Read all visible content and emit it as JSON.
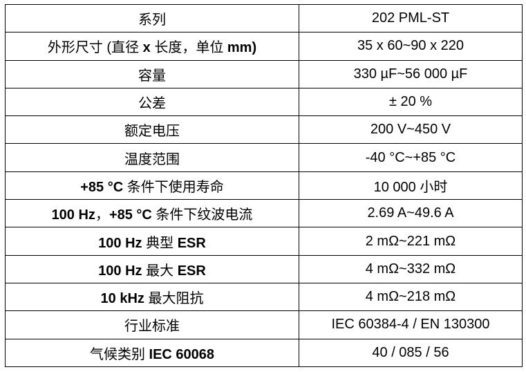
{
  "rows": [
    {
      "label": [
        {
          "t": "系列",
          "b": false
        }
      ],
      "value": "202 PML-ST"
    },
    {
      "label": [
        {
          "t": "外形尺寸 (直径 ",
          "b": false
        },
        {
          "t": "x",
          "b": true
        },
        {
          "t": " 长度，单位 ",
          "b": false
        },
        {
          "t": "mm)",
          "b": true
        }
      ],
      "value": "35 x 60~90 x 220"
    },
    {
      "label": [
        {
          "t": "容量",
          "b": false
        }
      ],
      "value": "330 µF~56 000 µF"
    },
    {
      "label": [
        {
          "t": "公差",
          "b": false
        }
      ],
      "value": "± 20 %"
    },
    {
      "label": [
        {
          "t": "额定电压",
          "b": false
        }
      ],
      "value": "200 V~450 V"
    },
    {
      "label": [
        {
          "t": "温度范围",
          "b": false
        }
      ],
      "value": "-40 °C~+85 °C"
    },
    {
      "label": [
        {
          "t": "+85 °C ",
          "b": true
        },
        {
          "t": "条件下使用寿命",
          "b": false
        }
      ],
      "value": "10 000 小时"
    },
    {
      "label": [
        {
          "t": "100 Hz",
          "b": true
        },
        {
          "t": "，",
          "b": false
        },
        {
          "t": "+85 °C ",
          "b": true
        },
        {
          "t": "条件下纹波电流",
          "b": false
        }
      ],
      "value": "2.69 A~49.6 A"
    },
    {
      "label": [
        {
          "t": "100 Hz ",
          "b": true
        },
        {
          "t": "典型 ",
          "b": false
        },
        {
          "t": "ESR",
          "b": true
        }
      ],
      "value": "2 mΩ~221 mΩ"
    },
    {
      "label": [
        {
          "t": "100 Hz ",
          "b": true
        },
        {
          "t": "最大 ",
          "b": false
        },
        {
          "t": "ESR",
          "b": true
        }
      ],
      "value": "4 mΩ~332 mΩ"
    },
    {
      "label": [
        {
          "t": "10 kHz ",
          "b": true
        },
        {
          "t": "最大阻抗",
          "b": false
        }
      ],
      "value": "4 mΩ~218 mΩ"
    },
    {
      "label": [
        {
          "t": "行业标准",
          "b": false
        }
      ],
      "value": "IEC 60384-4 / EN 130300"
    },
    {
      "label": [
        {
          "t": "气候类别 ",
          "b": false
        },
        {
          "t": "IEC 60068",
          "b": true
        }
      ],
      "value": "40 / 085 / 56"
    }
  ]
}
